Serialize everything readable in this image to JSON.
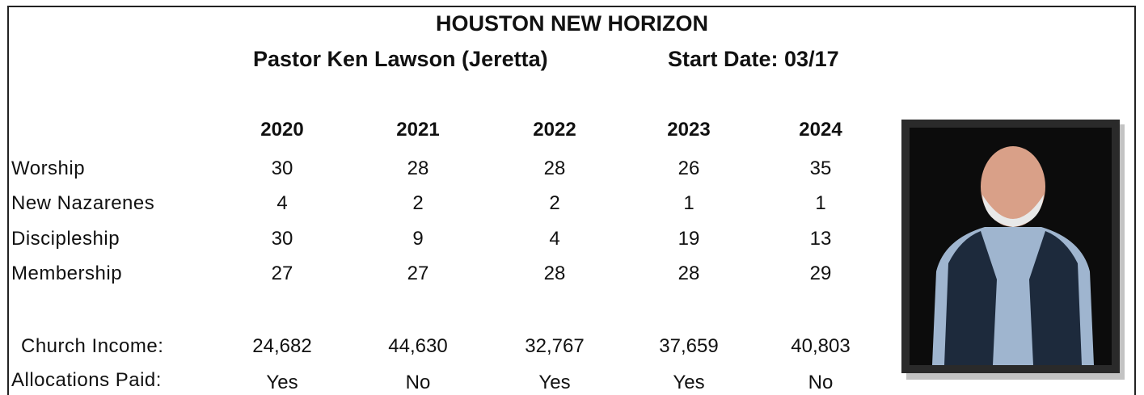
{
  "header": {
    "title": "HOUSTON NEW HORIZON",
    "pastor": "Pastor Ken Lawson (Jeretta)",
    "start_date": "Start Date: 03/17"
  },
  "table": {
    "columns": [
      "2020",
      "2021",
      "2022",
      "2023",
      "2024"
    ],
    "rows": [
      {
        "label": "Worship",
        "values": [
          "30",
          "28",
          "28",
          "26",
          "35"
        ]
      },
      {
        "label": "New Nazarenes",
        "values": [
          "4",
          "2",
          "2",
          "1",
          "1"
        ]
      },
      {
        "label": "Discipleship",
        "values": [
          "30",
          "9",
          "4",
          "19",
          "13"
        ]
      },
      {
        "label": "Membership",
        "values": [
          "27",
          "27",
          "28",
          "28",
          "29"
        ]
      },
      {
        "label": "Church Income:",
        "values": [
          "24,682",
          "44,630",
          "32,767",
          "37,659",
          "40,803"
        ]
      },
      {
        "label": "Allocations Paid:",
        "values": [
          "Yes",
          "No",
          "Yes",
          "Yes",
          "No"
        ]
      }
    ]
  }
}
